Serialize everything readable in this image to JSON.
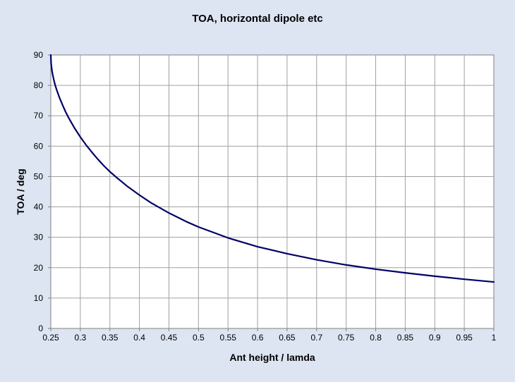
{
  "chart_data": {
    "type": "line",
    "title": "TOA, horizontal dipole etc",
    "xlabel": "Ant height / lamda",
    "ylabel": "TOA / deg",
    "xlim": [
      0.25,
      1
    ],
    "ylim": [
      0,
      90
    ],
    "x_ticks": [
      "0.25",
      "0.3",
      "0.35",
      "0.4",
      "0.45",
      "0.5",
      "0.55",
      "0.6",
      "0.65",
      "0.7",
      "0.75",
      "0.8",
      "0.85",
      "0.9",
      "0.95",
      "1"
    ],
    "y_ticks": [
      "0",
      "10",
      "20",
      "30",
      "40",
      "50",
      "60",
      "70",
      "80",
      "90"
    ],
    "grid": true,
    "legend": "none",
    "series": [
      {
        "color": "#000066",
        "x": [
          0.25,
          0.2505,
          0.251,
          0.252,
          0.253,
          0.255,
          0.2575,
          0.26,
          0.265,
          0.27,
          0.275,
          0.28,
          0.29,
          0.3,
          0.31,
          0.32,
          0.33,
          0.34,
          0.35,
          0.36,
          0.38,
          0.4,
          0.42,
          0.45,
          0.48,
          0.5,
          0.55,
          0.6,
          0.65,
          0.7,
          0.75,
          0.8,
          0.85,
          0.9,
          0.95,
          1.0
        ],
        "y": [
          90,
          87.4,
          86.4,
          84.9,
          83.7,
          81.9,
          80.0,
          78.5,
          75.8,
          73.5,
          71.3,
          69.4,
          66.0,
          63.0,
          60.3,
          57.9,
          55.6,
          53.5,
          51.6,
          49.9,
          46.7,
          43.9,
          41.3,
          38.0,
          35.1,
          33.4,
          29.8,
          26.9,
          24.6,
          22.6,
          20.9,
          19.5,
          18.3,
          17.2,
          16.2,
          15.3
        ]
      }
    ]
  }
}
